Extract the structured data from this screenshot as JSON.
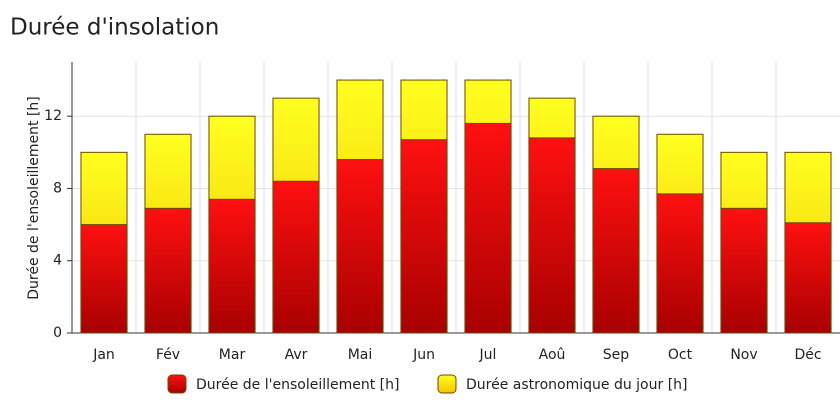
{
  "chart_data": {
    "type": "bar",
    "title": "Durée d'insolation",
    "ylabel": "Durée de l'ensoleillement [h]",
    "categories": [
      "Jan",
      "Fév",
      "Mar",
      "Avr",
      "Mai",
      "Jun",
      "Jul",
      "Aoû",
      "Sep",
      "Oct",
      "Nov",
      "Déc"
    ],
    "series": [
      {
        "name": "Durée de l'ensoleillement [h]",
        "color": "#e00000",
        "values": [
          6.0,
          6.9,
          7.4,
          8.4,
          9.6,
          10.7,
          11.6,
          10.8,
          9.1,
          7.7,
          6.9,
          6.1
        ]
      },
      {
        "name": "Durée astronomique du jour [h]",
        "color": "#ffe600",
        "values": [
          10,
          11,
          12,
          13,
          14,
          14,
          14,
          13,
          12,
          11,
          10,
          10
        ]
      }
    ],
    "ylim": [
      0,
      15
    ],
    "yticks": [
      0,
      4,
      8,
      12
    ],
    "grid": true,
    "legend": "bottom"
  }
}
